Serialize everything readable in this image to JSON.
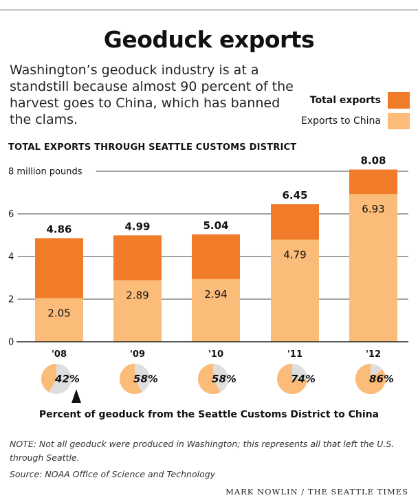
{
  "title": "Geoduck exports",
  "subtitle": "Washington’s geoduck industry is at a standstill because almost 90 percent of the harvest goes to China, which has banned the clams.",
  "legend": {
    "total_label": "Total exports",
    "china_label": "Exports to China"
  },
  "colors": {
    "total": "#f07b28",
    "china": "#fbbb79",
    "pie_rest": "#dedede"
  },
  "chart_heading": "TOTAL EXPORTS THROUGH SEATTLE CUSTOMS DISTRICT",
  "pie_caption": "Percent of geoduck from the Seattle Customs District to China",
  "note": "NOTE: Not all geoduck were produced in Washington; this represents all that left the U.S. through Seattle.",
  "source": "Source: NOAA Office of Science and Technology",
  "credit": "MARK NOWLIN / THE SEATTLE TIMES",
  "chart_data": {
    "type": "bar",
    "stacked": "overlay",
    "categories": [
      "'08",
      "'09",
      "'10",
      "'11",
      "'12"
    ],
    "series": [
      {
        "name": "Total exports",
        "values": [
          4.86,
          4.99,
          5.04,
          6.45,
          8.08
        ],
        "labels": [
          "4.86",
          "4.99",
          "5.04",
          "6.45",
          "8.08"
        ]
      },
      {
        "name": "Exports to China",
        "values": [
          2.05,
          2.89,
          2.94,
          4.79,
          6.93
        ],
        "labels": [
          "2.05",
          "2.89",
          "2.94",
          "4.79",
          "6.93"
        ]
      }
    ],
    "y_ticks": [
      0,
      2,
      4,
      6,
      8
    ],
    "y_tick_labels": [
      "0",
      "2",
      "4",
      "6",
      "8 million pounds"
    ],
    "ylim": [
      0,
      8
    ],
    "pie_values": [
      42,
      58,
      58,
      74,
      86
    ],
    "pie_labels": [
      "42%",
      "58%",
      "58%",
      "74%",
      "86%"
    ]
  }
}
